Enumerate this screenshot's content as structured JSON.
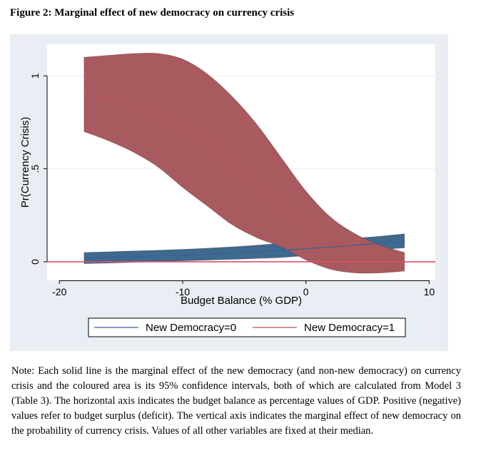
{
  "figure": {
    "title": "Figure 2: Marginal effect of new democracy on currency crisis",
    "note": "Note: Each solid line is the marginal effect of the new democracy (and non-new democracy) on currency crisis and the coloured area is its 95% confidence intervals, both of which are calculated from Model 3 (Table 3). The horizontal axis indicates the budget balance as percentage values of GDP. Positive (negative) values refer to budget surplus (deficit). The vertical axis indicates the marginal effect of new democracy on the probability of currency crisis. Values of all other variables are fixed at their median."
  },
  "chart_data": {
    "type": "area",
    "xlabel": "Budget Balance (% GDP)",
    "ylabel": "Pr(Currency Crisis)",
    "xlim": [
      -21,
      10.5
    ],
    "ylim": [
      -0.1,
      1.17
    ],
    "x_ticks": [
      -20,
      -10,
      0,
      10
    ],
    "x_tick_labels": [
      "-20",
      "-10",
      "0",
      "10"
    ],
    "y_ticks": [
      0,
      0.5,
      1
    ],
    "y_tick_labels": [
      "0",
      ".5",
      "1"
    ],
    "grid": true,
    "legend_position": "bottom",
    "reference_line": {
      "y": 0,
      "color": "#d9506a"
    },
    "x": [
      -18,
      -16,
      -14,
      -12,
      -10,
      -8,
      -6,
      -4,
      -2,
      0,
      2,
      4,
      6,
      8
    ],
    "series": [
      {
        "name": "New Democracy=0",
        "line_color": "#3a5d9c",
        "fill_color": "#3d6a8e",
        "values": [
          0.02,
          0.023,
          0.027,
          0.031,
          0.036,
          0.041,
          0.047,
          0.054,
          0.062,
          0.07,
          0.079,
          0.089,
          0.1,
          0.112
        ],
        "lower": [
          -0.01,
          -0.007,
          -0.003,
          0.001,
          0.005,
          0.009,
          0.013,
          0.018,
          0.023,
          0.033,
          0.044,
          0.055,
          0.065,
          0.075
        ],
        "upper": [
          0.05,
          0.054,
          0.058,
          0.062,
          0.067,
          0.073,
          0.08,
          0.089,
          0.099,
          0.108,
          0.117,
          0.127,
          0.137,
          0.15
        ]
      },
      {
        "name": "New Democracy=1",
        "line_color": "#b8505a",
        "fill_color": "#a85a5e",
        "values": [
          0.9,
          0.88,
          0.84,
          0.8,
          0.73,
          0.64,
          0.53,
          0.41,
          0.3,
          0.2,
          0.12,
          0.07,
          0.04,
          0.02
        ],
        "lower": [
          0.7,
          0.65,
          0.59,
          0.51,
          0.4,
          0.3,
          0.2,
          0.13,
          0.08,
          0.01,
          -0.04,
          -0.06,
          -0.06,
          -0.05
        ],
        "upper": [
          1.1,
          1.11,
          1.12,
          1.12,
          1.09,
          1.01,
          0.89,
          0.74,
          0.56,
          0.38,
          0.24,
          0.15,
          0.09,
          0.05
        ]
      }
    ]
  }
}
